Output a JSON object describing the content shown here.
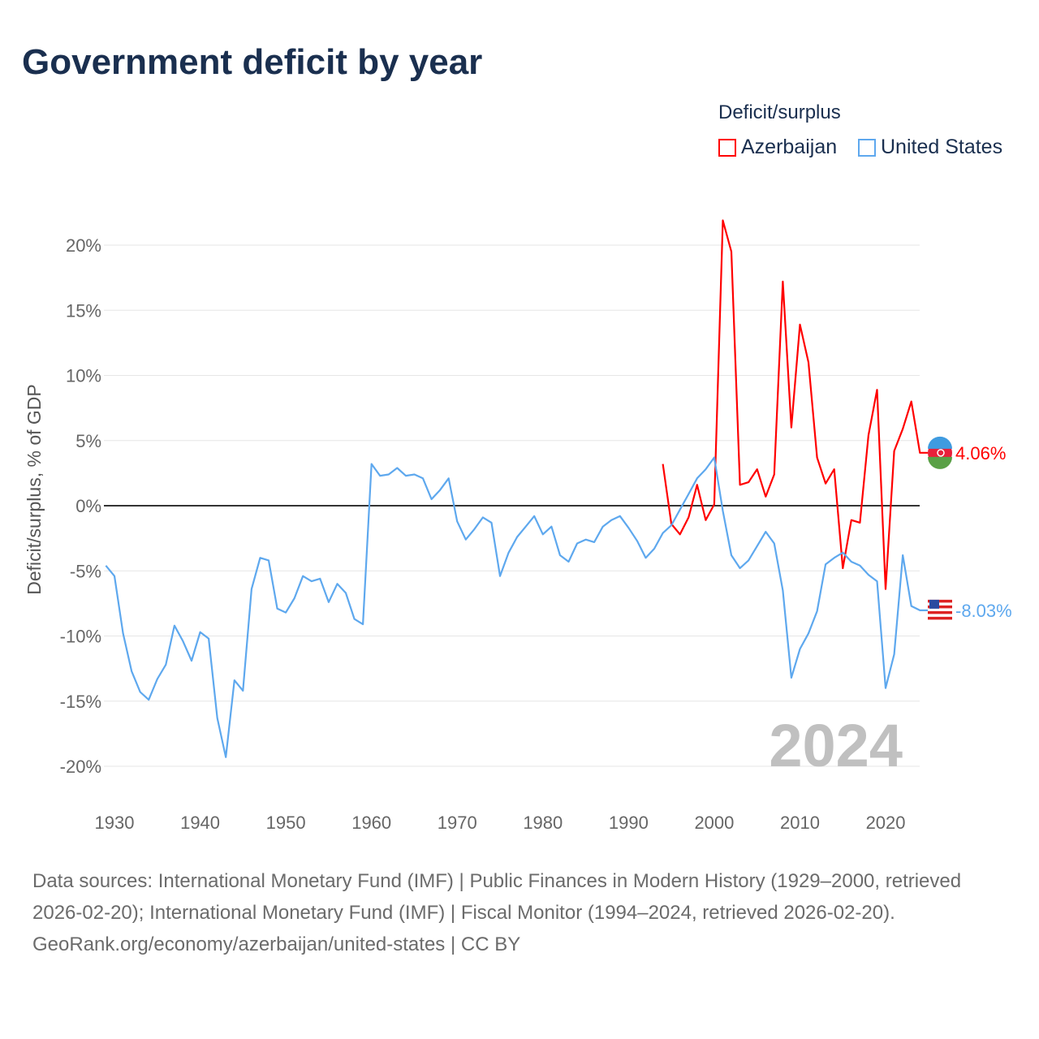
{
  "title": "Government deficit by year",
  "legend": {
    "title": "Deficit/surplus",
    "items": [
      "Azerbaijan",
      "United States"
    ]
  },
  "colors": {
    "Azerbaijan": "#ff0000",
    "United States": "#5ea8ee"
  },
  "year_overlay": "2024",
  "footer": {
    "sources": "Data sources: International Monetary Fund (IMF) | Public Finances in Modern History (1929–2000, retrieved 2026-02-20); International Monetary Fund (IMF) | Fiscal Monitor (1994–2024, retrieved 2026-02-20).",
    "credit": "GeoRank.org/economy/azerbaijan/united-states | CC BY"
  },
  "chart_data": {
    "type": "line",
    "title": "Government deficit by year",
    "xlabel": "",
    "ylabel": "Deficit/surplus, % of GDP",
    "xlim": [
      1929,
      2024
    ],
    "ylim": [
      -20,
      22
    ],
    "x_ticks": [
      1930,
      1940,
      1950,
      1960,
      1970,
      1980,
      1990,
      2000,
      2010,
      2020
    ],
    "x_tick_labels": [
      "1930",
      "1940",
      "1950",
      "1960",
      "1970",
      "1980",
      "1990",
      "2000",
      "2010",
      "2020"
    ],
    "y_ticks": [
      20,
      15,
      10,
      5,
      0,
      -5,
      -10,
      -15,
      -20
    ],
    "y_tick_labels": [
      "20%",
      "15%",
      "10%",
      "5%",
      "0%",
      "-5%",
      "-10%",
      "-15%",
      "-20%"
    ],
    "grid": true,
    "legend_position": "top-right",
    "series": [
      {
        "name": "Azerbaijan",
        "start_year": 1994,
        "end_label": "4.06%",
        "values": [
          3.2,
          -1.4,
          -2.2,
          -0.9,
          1.6,
          -1.1,
          0.1,
          21.9,
          19.5,
          1.6,
          1.8,
          2.8,
          0.7,
          2.4,
          17.2,
          6.0,
          13.9,
          11.0,
          3.7,
          1.7,
          2.8,
          -4.8,
          -1.1,
          -1.3,
          5.4,
          8.9,
          -6.4,
          4.2,
          5.9,
          8.0,
          4.06
        ]
      },
      {
        "name": "United States",
        "start_year": 1929,
        "end_label": "-8.03%",
        "values": [
          -4.6,
          -5.4,
          -9.8,
          -12.7,
          -14.3,
          -14.9,
          -13.3,
          -12.2,
          -9.2,
          -10.4,
          -11.9,
          -9.7,
          -10.2,
          -16.3,
          -19.3,
          -13.4,
          -14.2,
          -6.4,
          -4.0,
          -4.2,
          -7.9,
          -8.2,
          -7.1,
          -5.4,
          -5.8,
          -5.6,
          -7.4,
          -6.0,
          -6.7,
          -8.7,
          -9.1,
          3.2,
          2.3,
          2.4,
          2.9,
          2.3,
          2.4,
          2.1,
          0.5,
          1.2,
          2.1,
          -1.2,
          -2.6,
          -1.8,
          -0.9,
          -1.3,
          -5.4,
          -3.6,
          -2.4,
          -1.6,
          -0.8,
          -2.2,
          -1.6,
          -3.8,
          -4.3,
          -2.9,
          -2.6,
          -2.8,
          -1.6,
          -1.1,
          -0.8,
          -1.7,
          -2.7,
          -4.0,
          -3.3,
          -2.1,
          -1.5,
          -0.3,
          0.9,
          2.1,
          2.8,
          3.7,
          -0.4,
          -3.8,
          -4.8,
          -4.2,
          -3.1,
          -2.0,
          -2.9,
          -6.5,
          -13.2,
          -11.0,
          -9.8,
          -8.1,
          -4.5,
          -4.0,
          -3.6,
          -4.3,
          -4.6,
          -5.3,
          -5.8,
          -14.0,
          -11.4,
          -3.8,
          -7.7,
          -8.03
        ]
      }
    ]
  }
}
